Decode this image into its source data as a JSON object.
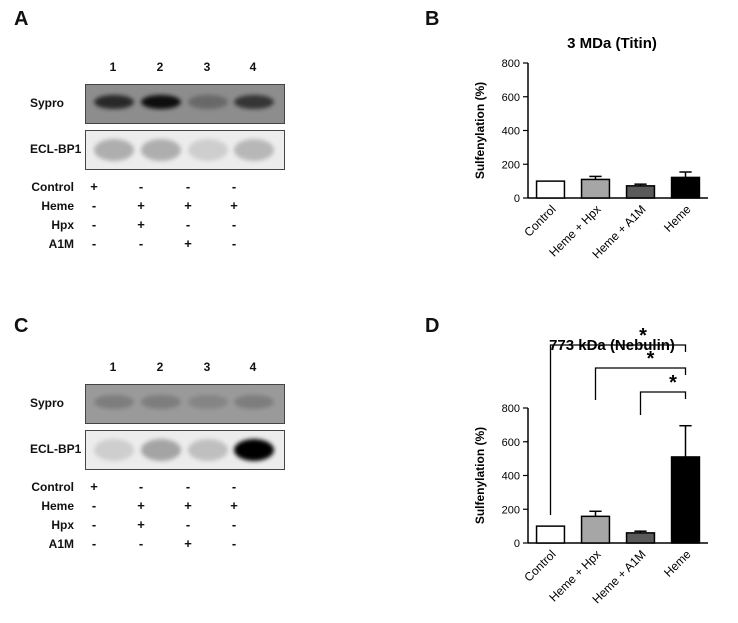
{
  "panels": {
    "A": {
      "letter": "A",
      "lanes": [
        "1",
        "2",
        "3",
        "4"
      ],
      "blots": [
        "Sypro",
        "ECL-BP1"
      ],
      "conditions": [
        {
          "label": "Control",
          "signs": [
            "+",
            "-",
            "-",
            "-"
          ]
        },
        {
          "label": "Heme",
          "signs": [
            "-",
            "+",
            "+",
            "+"
          ]
        },
        {
          "label": "Hpx",
          "signs": [
            "-",
            "+",
            "-",
            "-"
          ]
        },
        {
          "label": "A1M",
          "signs": [
            "-",
            "-",
            "+",
            "-"
          ]
        }
      ],
      "sypro_intensity": [
        0.85,
        0.95,
        0.55,
        0.8
      ],
      "ecl_intensity": [
        0.35,
        0.35,
        0.15,
        0.3
      ]
    },
    "C": {
      "letter": "C",
      "lanes": [
        "1",
        "2",
        "3",
        "4"
      ],
      "blots": [
        "Sypro",
        "ECL-BP1"
      ],
      "conditions": [
        {
          "label": "Control",
          "signs": [
            "+",
            "-",
            "-",
            "-"
          ]
        },
        {
          "label": "Heme",
          "signs": [
            "-",
            "+",
            "+",
            "+"
          ]
        },
        {
          "label": "Hpx",
          "signs": [
            "-",
            "+",
            "-",
            "-"
          ]
        },
        {
          "label": "A1M",
          "signs": [
            "-",
            "-",
            "+",
            "-"
          ]
        }
      ],
      "sypro_intensity": [
        0.45,
        0.45,
        0.4,
        0.45
      ],
      "ecl_intensity": [
        0.15,
        0.4,
        0.25,
        1.0
      ]
    },
    "B": {
      "letter": "B"
    },
    "D": {
      "letter": "D"
    }
  },
  "colors": {
    "white_bar": "#ffffff",
    "light_gray_bar": "#a6a6a6",
    "dark_gray_bar": "#5a5a5a",
    "black_bar": "#000000"
  },
  "chart_data": [
    {
      "type": "bar",
      "title": "3 MDa (Titin)",
      "ylabel": "Sulfenylation (%)",
      "xlabel": "",
      "categories": [
        "Control",
        "Heme + Hpx",
        "Heme + A1M",
        "Heme"
      ],
      "values": [
        100,
        110,
        72,
        122
      ],
      "errors": [
        0,
        18,
        10,
        32
      ],
      "bar_colors": [
        "#ffffff",
        "#a6a6a6",
        "#5a5a5a",
        "#000000"
      ],
      "ylim": [
        0,
        800
      ],
      "yticks": [
        "0",
        "200",
        "400",
        "600",
        "800"
      ]
    },
    {
      "type": "bar",
      "title": "773 kDa (Nebulin)",
      "ylabel": "Sulfenylation (%)",
      "xlabel": "",
      "categories": [
        "Control",
        "Heme + Hpx",
        "Heme + A1M",
        "Heme"
      ],
      "values": [
        100,
        158,
        60,
        510
      ],
      "errors": [
        0,
        30,
        10,
        185
      ],
      "bar_colors": [
        "#ffffff",
        "#a6a6a6",
        "#5a5a5a",
        "#000000"
      ],
      "ylim": [
        0,
        800
      ],
      "yticks": [
        "0",
        "200",
        "400",
        "600",
        "800"
      ],
      "significance": [
        {
          "from": 0,
          "to": 3,
          "label": "*"
        },
        {
          "from": 1,
          "to": 3,
          "label": "*"
        },
        {
          "from": 2,
          "to": 3,
          "label": "*"
        }
      ]
    }
  ]
}
